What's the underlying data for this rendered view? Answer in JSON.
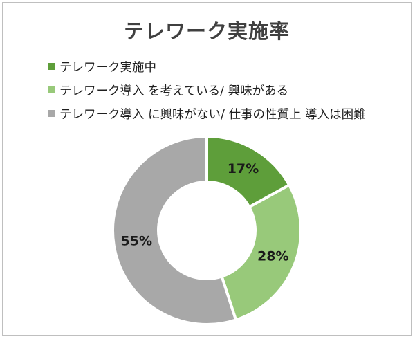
{
  "chart_data": {
    "type": "pie",
    "subtype": "donut",
    "title": "テレワーク実施率",
    "legend_position": "top-left",
    "slices": [
      {
        "name": "テレワーク実施中",
        "value": 17,
        "label": "17%",
        "color": "#5e9e3a",
        "stroke": "#4f8a2f"
      },
      {
        "name": "テレワーク導入 を考えている/ 興味がある",
        "value": 28,
        "label": "28%",
        "color": "#98c97a",
        "stroke": "#7fb45e"
      },
      {
        "name": "テレワーク導入 に興味がない/ 仕事の性質上 導入は困難",
        "value": 55,
        "label": "55%",
        "color": "#a8a8a8",
        "stroke": "#8f8f8f"
      }
    ]
  }
}
